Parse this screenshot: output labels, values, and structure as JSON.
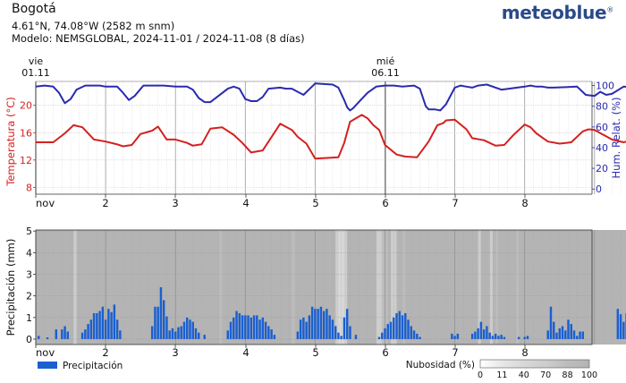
{
  "header": {
    "city": "Bogotá",
    "coords": "4.61°N, 74.08°W (2582 m snm)",
    "model": "Modelo: NEMSGLOBAL, 2024-11-01 / 2024-11-08 (8 días)",
    "brand": "meteoblue",
    "brand_mark": "®"
  },
  "chart_data": [
    {
      "type": "line",
      "day_markers": [
        {
          "weekday": "vie",
          "date": "01.11",
          "day_index": 0
        },
        {
          "weekday": "mié",
          "date": "06.11",
          "day_index": 5
        }
      ],
      "x_tick_labels": [
        "nov",
        "2",
        "3",
        "4",
        "5",
        "6",
        "7",
        "8"
      ],
      "left_axis": {
        "label": "Temperatura (°C)",
        "ticks": [
          8,
          12,
          16,
          20
        ],
        "range": [
          7,
          23.5
        ],
        "color": "#d42020"
      },
      "right_axis": {
        "label": "Hum. Relat. (%)",
        "ticks": [
          0,
          20,
          40,
          60,
          80,
          100
        ],
        "range": [
          -5,
          104
        ],
        "color": "#2a2ab0"
      },
      "series": [
        {
          "axis": "left",
          "color": "#d42020",
          "x_hours_from_start": [
            0,
            6,
            10,
            13,
            16,
            20,
            24,
            28,
            30,
            33,
            36,
            40,
            42,
            45,
            48,
            52,
            54,
            57,
            60,
            64,
            68,
            71,
            74,
            78,
            82,
            84,
            88,
            90,
            93,
            96,
            100,
            104,
            106,
            108,
            112,
            114,
            116,
            118,
            120,
            124,
            127,
            131,
            135,
            138,
            140,
            141,
            144,
            148,
            150,
            154,
            158,
            161,
            164,
            168,
            170,
            172,
            176,
            180,
            184,
            188,
            190,
            192,
            198,
            202,
            206,
            210,
            212
          ],
          "values": [
            14.6,
            14.6,
            15.9,
            17.1,
            16.8,
            15.0,
            14.7,
            14.3,
            14.0,
            14.2,
            15.8,
            16.3,
            16.9,
            15.0,
            15.0,
            14.5,
            14.1,
            14.3,
            16.6,
            16.8,
            15.7,
            14.5,
            13.1,
            13.4,
            16.0,
            17.3,
            16.4,
            15.4,
            14.4,
            12.2,
            12.3,
            12.4,
            14.5,
            17.6,
            18.6,
            18.1,
            17.1,
            16.4,
            14.2,
            12.8,
            12.5,
            12.4,
            14.7,
            17.1,
            17.4,
            17.8,
            17.9,
            16.5,
            15.2,
            14.9,
            14.1,
            14.2,
            15.6,
            17.2,
            16.8,
            15.9,
            14.7,
            14.4,
            14.6,
            16.2,
            16.5,
            16.4,
            15.0,
            14.6,
            15.0,
            16.4,
            15.0
          ]
        },
        {
          "axis": "right",
          "color": "#2a2ab0",
          "x_hours_from_start": [
            0,
            3,
            6,
            8,
            10,
            12,
            14,
            17,
            22,
            24,
            28,
            30,
            32,
            34,
            37,
            44,
            48,
            52,
            54,
            56,
            58,
            60,
            66,
            68,
            70,
            72,
            74,
            76,
            78,
            80,
            84,
            86,
            88,
            90,
            92,
            96,
            102,
            104,
            106,
            107,
            108,
            109,
            111,
            114,
            117,
            120,
            123,
            126,
            130,
            132,
            134,
            135,
            137,
            139,
            141,
            144,
            146,
            148,
            150,
            152,
            155,
            160,
            168,
            170,
            172,
            174,
            176,
            178,
            186,
            189,
            192,
            194,
            196,
            198,
            202,
            206,
            210,
            212
          ],
          "values": [
            99,
            100,
            99,
            93,
            83,
            87,
            96,
            100,
            100,
            99,
            99,
            93,
            86,
            90,
            100,
            100,
            99,
            99,
            96,
            88,
            84,
            84,
            97,
            99,
            97,
            87,
            85,
            85,
            89,
            97,
            98,
            97,
            97,
            94,
            91,
            102,
            101,
            98,
            86,
            79,
            76,
            78,
            84,
            93,
            99,
            100,
            100,
            99,
            100,
            97,
            80,
            77,
            77,
            76,
            82,
            98,
            100,
            99,
            98,
            100,
            101,
            96,
            99,
            100,
            99,
            99,
            98,
            98,
            99,
            91,
            90,
            94,
            91,
            92,
            99,
            98,
            100,
            100
          ]
        }
      ]
    },
    {
      "type": "bar",
      "x_tick_labels": [
        "nov",
        "2",
        "3",
        "4",
        "5",
        "6",
        "7",
        "8"
      ],
      "y_axis": {
        "label": "Precipitación (mm)",
        "ticks": [
          0,
          1,
          2,
          3,
          4,
          5
        ],
        "range": [
          -0.25,
          5.05
        ]
      },
      "bar_color": "#1a5fd0",
      "x_hours_from_start": [
        1,
        4,
        7,
        9,
        10,
        11,
        16,
        17,
        18,
        19,
        20,
        21,
        22,
        23,
        24,
        25,
        26,
        27,
        28,
        29,
        40,
        41,
        42,
        43,
        44,
        45,
        46,
        47,
        48,
        49,
        50,
        51,
        52,
        53,
        54,
        55,
        56,
        58,
        66,
        67,
        68,
        69,
        70,
        71,
        72,
        73,
        74,
        75,
        76,
        77,
        78,
        79,
        80,
        81,
        82,
        90,
        91,
        92,
        93,
        94,
        95,
        96,
        97,
        98,
        99,
        100,
        101,
        102,
        103,
        104,
        105,
        106,
        107,
        108,
        110,
        118,
        119,
        120,
        121,
        122,
        123,
        124,
        125,
        126,
        127,
        128,
        129,
        130,
        131,
        132,
        143,
        144,
        145,
        150,
        151,
        152,
        153,
        154,
        155,
        156,
        157,
        158,
        159,
        160,
        161,
        166,
        168,
        169,
        176,
        177,
        178,
        179,
        180,
        181,
        182,
        183,
        184,
        185,
        186,
        187,
        188,
        200,
        201,
        202,
        203,
        204,
        205,
        206,
        207,
        208,
        209,
        210,
        211,
        212
      ],
      "values": [
        0.15,
        0.08,
        0.45,
        0.45,
        0.6,
        0.35,
        0.3,
        0.45,
        0.7,
        0.9,
        1.2,
        1.2,
        1.3,
        1.5,
        0.9,
        1.4,
        1.25,
        1.6,
        0.9,
        0.4,
        0.6,
        1.5,
        1.5,
        2.4,
        1.8,
        1.05,
        0.4,
        0.5,
        0.35,
        0.55,
        0.6,
        0.8,
        1.0,
        0.9,
        0.8,
        0.5,
        0.3,
        0.2,
        0.4,
        0.8,
        1.0,
        1.3,
        1.2,
        1.1,
        1.1,
        1.1,
        1.0,
        1.1,
        1.1,
        0.9,
        1.0,
        0.8,
        0.6,
        0.45,
        0.2,
        0.35,
        0.9,
        1.0,
        0.8,
        1.1,
        1.5,
        1.4,
        1.4,
        1.5,
        1.3,
        1.4,
        1.1,
        0.9,
        0.6,
        0.3,
        0.15,
        1.0,
        1.4,
        0.6,
        0.2,
        0.1,
        0.3,
        0.5,
        0.7,
        0.8,
        1.0,
        1.2,
        1.3,
        1.1,
        1.2,
        0.9,
        0.6,
        0.4,
        0.25,
        0.1,
        0.25,
        0.15,
        0.25,
        0.25,
        0.35,
        0.5,
        0.8,
        0.45,
        0.6,
        0.3,
        0.15,
        0.25,
        0.15,
        0.2,
        0.1,
        0.1,
        0.1,
        0.15,
        0.4,
        1.5,
        0.8,
        0.3,
        0.5,
        0.6,
        0.4,
        0.9,
        0.7,
        0.4,
        0.15,
        0.35,
        0.35,
        1.4,
        1.15,
        0.8,
        1.2,
        1.4,
        1.0,
        0.7,
        0.5,
        0.5,
        0.8,
        0.7,
        0.8,
        0.7,
        1.1
      ],
      "legend": {
        "series_label": "Precipitación",
        "color_scale_label": "Nubosidad (%)",
        "color_scale_ticks": [
          "0",
          "11",
          "40",
          "70",
          "88",
          "100"
        ]
      },
      "cloud_background": {
        "description_values_percent": true,
        "segments": [
          {
            "start_hour": 0,
            "end_hour": 212,
            "value": 100
          },
          {
            "start_hour": 13,
            "end_hour": 14,
            "value": 70
          },
          {
            "start_hour": 63,
            "end_hour": 64,
            "value": 88
          },
          {
            "start_hour": 88,
            "end_hour": 89,
            "value": 88
          },
          {
            "start_hour": 103,
            "end_hour": 104,
            "value": 70
          },
          {
            "start_hour": 104,
            "end_hour": 106,
            "value": 40
          },
          {
            "start_hour": 106,
            "end_hour": 107,
            "value": 70
          },
          {
            "start_hour": 117,
            "end_hour": 119,
            "value": 70
          },
          {
            "start_hour": 119,
            "end_hour": 121,
            "value": 88
          },
          {
            "start_hour": 122,
            "end_hour": 124,
            "value": 70
          },
          {
            "start_hour": 126,
            "end_hour": 127,
            "value": 88
          },
          {
            "start_hour": 152,
            "end_hour": 153,
            "value": 70
          },
          {
            "start_hour": 156,
            "end_hour": 157,
            "value": 70
          },
          {
            "start_hour": 158,
            "end_hour": 159,
            "value": 88
          },
          {
            "start_hour": 165,
            "end_hour": 166,
            "value": 88
          },
          {
            "start_hour": 205,
            "end_hour": 206,
            "value": 70
          }
        ]
      }
    }
  ]
}
